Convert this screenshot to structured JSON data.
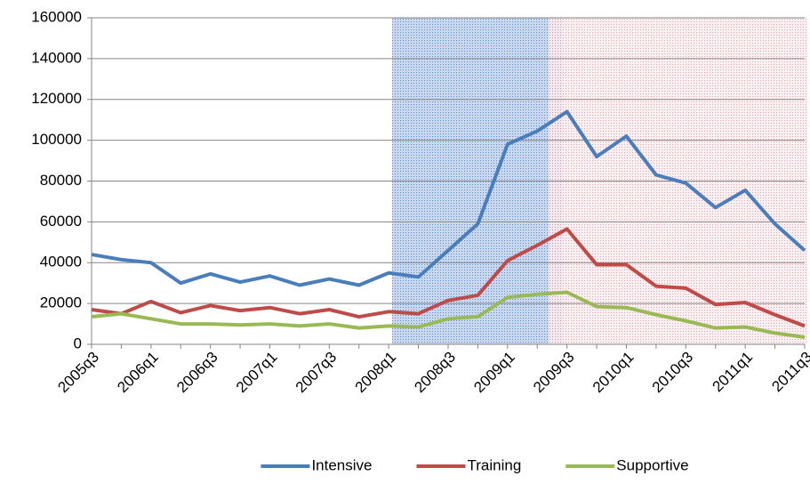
{
  "chart_data": {
    "type": "line",
    "categories": [
      "2005q3",
      null,
      "2006q1",
      null,
      "2006q3",
      null,
      "2007q1",
      null,
      "2007q3",
      null,
      "2008q1",
      null,
      "2008q3",
      null,
      "2009q1",
      null,
      "2009q3",
      null,
      "2010q1",
      null,
      "2010q3",
      null,
      "2011q1",
      null,
      "2011q3"
    ],
    "series": [
      {
        "name": "Intensive",
        "color": "#4a7ebb",
        "values": [
          44000,
          41500,
          40000,
          30000,
          34500,
          30500,
          33500,
          29000,
          32000,
          29000,
          35000,
          33000,
          46000,
          59000,
          98000,
          104500,
          114000,
          92000,
          102000,
          83000,
          79000,
          67000,
          75500,
          59000,
          46000
        ]
      },
      {
        "name": "Training",
        "color": "#be4b48",
        "values": [
          17000,
          15000,
          21000,
          15500,
          19000,
          16500,
          18000,
          15000,
          17000,
          13500,
          16000,
          15000,
          21500,
          24000,
          41000,
          48500,
          56500,
          39000,
          39000,
          28500,
          27500,
          19500,
          20500,
          14500,
          9000
        ]
      },
      {
        "name": "Supportive",
        "color": "#98b954",
        "values": [
          13500,
          15000,
          12500,
          10000,
          10000,
          9500,
          10000,
          9000,
          10000,
          8000,
          9000,
          8500,
          12500,
          13500,
          23000,
          24500,
          25500,
          18500,
          18000,
          14500,
          11500,
          8000,
          8500,
          5500,
          3500
        ]
      }
    ],
    "ylim": [
      0,
      160000
    ],
    "yticks": [
      0,
      20000,
      40000,
      60000,
      80000,
      100000,
      120000,
      140000,
      160000
    ],
    "grid": true,
    "legend": "bottom"
  }
}
